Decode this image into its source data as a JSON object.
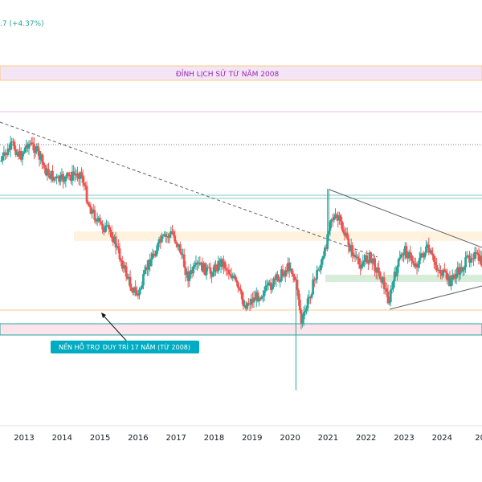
{
  "header": {
    "change_readout": ".7 (+4.37%)"
  },
  "colors": {
    "up": "#26a69a",
    "down": "#ef5350",
    "resistance_band": "#e1bee7",
    "support_band": "#f8bbd0",
    "mid_zone": "#ffe0b2",
    "green_zone": "#c8e6c9",
    "trend": "#5d606b"
  },
  "chart_data": {
    "type": "candlestick",
    "title": "",
    "xlabel": "",
    "ylabel": "",
    "x_ticks": [
      "2013",
      "2014",
      "2015",
      "2016",
      "2017",
      "2018",
      "2019",
      "2020",
      "2021",
      "2022",
      "2023",
      "2024",
      "20"
    ],
    "annotations": {
      "resistance_label": "ĐỈNH LỊCH SỬ TỪ NĂM 2008",
      "support_label": "NỀN HỖ TRỢ  DUY TRÌ 17 NĂM (TỪ 2008)"
    },
    "anchors": [
      [
        2012.4,
        200
      ],
      [
        2012.7,
        180
      ],
      [
        2012.9,
        195
      ],
      [
        2013.1,
        178
      ],
      [
        2013.3,
        185
      ],
      [
        2013.6,
        215
      ],
      [
        2013.9,
        225
      ],
      [
        2014.2,
        220
      ],
      [
        2014.5,
        215
      ],
      [
        2014.7,
        255
      ],
      [
        2015.0,
        280
      ],
      [
        2015.3,
        290
      ],
      [
        2015.6,
        330
      ],
      [
        2015.8,
        355
      ],
      [
        2016.0,
        368
      ],
      [
        2016.3,
        325
      ],
      [
        2016.6,
        300
      ],
      [
        2016.9,
        290
      ],
      [
        2017.1,
        310
      ],
      [
        2017.3,
        345
      ],
      [
        2017.6,
        330
      ],
      [
        2017.9,
        340
      ],
      [
        2018.2,
        325
      ],
      [
        2018.5,
        345
      ],
      [
        2018.8,
        380
      ],
      [
        2019.1,
        370
      ],
      [
        2019.4,
        360
      ],
      [
        2019.7,
        345
      ],
      [
        2020.0,
        330
      ],
      [
        2020.2,
        360
      ],
      [
        2020.3,
        405
      ],
      [
        2020.5,
        370
      ],
      [
        2020.7,
        340
      ],
      [
        2020.9,
        320
      ],
      [
        2021.05,
        270
      ],
      [
        2021.3,
        275
      ],
      [
        2021.5,
        300
      ],
      [
        2021.8,
        330
      ],
      [
        2022.1,
        320
      ],
      [
        2022.4,
        345
      ],
      [
        2022.6,
        375
      ],
      [
        2022.8,
        335
      ],
      [
        2023.0,
        310
      ],
      [
        2023.3,
        330
      ],
      [
        2023.6,
        310
      ],
      [
        2023.9,
        335
      ],
      [
        2024.2,
        350
      ],
      [
        2024.5,
        335
      ],
      [
        2024.8,
        315
      ],
      [
        2025.1,
        330
      ],
      [
        2025.3,
        335
      ]
    ],
    "spikes": [
      {
        "x": 2020.15,
        "low_y": 486
      },
      {
        "x": 2021.0,
        "high_y": 235
      }
    ]
  }
}
